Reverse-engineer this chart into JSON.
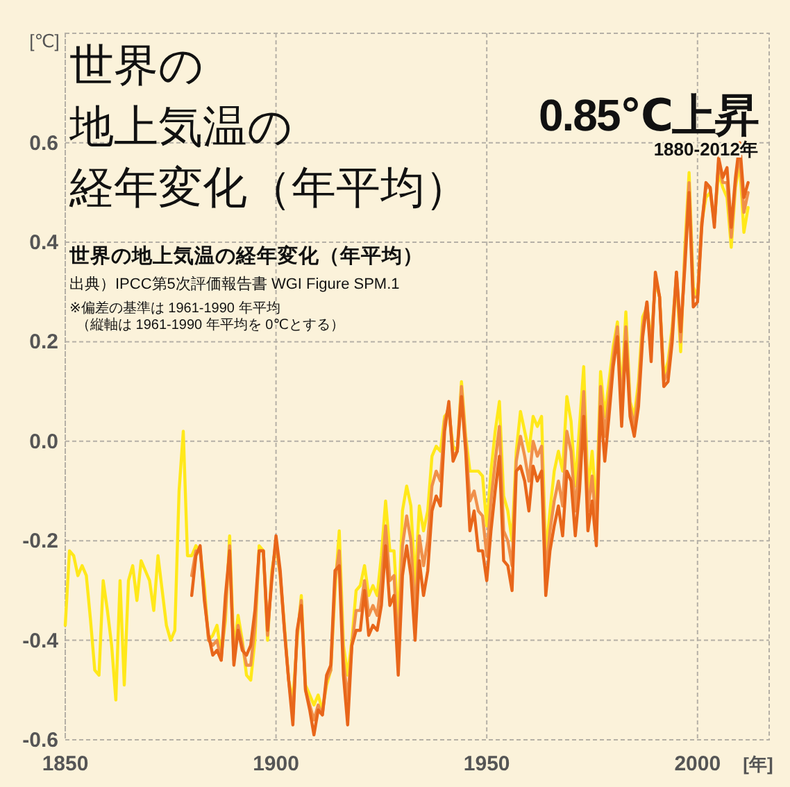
{
  "chart_data": {
    "type": "line",
    "title": [
      "世界の",
      "地上気温の",
      "経年変化（年平均）"
    ],
    "subtitle": "世界の地上気温の経年変化（年平均）",
    "annotations": [
      "0.85℃上昇",
      "1880-2012年",
      "出典）IPCC第5次評価報告書 WGI Figure SPM.1",
      "※偏差の基準は 1961-1990 年平均",
      "（縦軸は 1961-1990 年平均を 0℃とする）"
    ],
    "xlabel": "[年]",
    "ylabel": "[℃]",
    "xlim": [
      1850,
      2017
    ],
    "ylim": [
      -0.6,
      0.82
    ],
    "xticks": [
      1850,
      1900,
      1950,
      2000
    ],
    "yticks": [
      0.6,
      0.4,
      0.2,
      {
        "value": 0,
        "label": "0.0"
      },
      -0.2,
      -0.4,
      -0.6
    ],
    "grid": true,
    "line_style": "solid",
    "x": [
      1850,
      1851,
      1852,
      1853,
      1854,
      1855,
      1856,
      1857,
      1858,
      1859,
      1860,
      1861,
      1862,
      1863,
      1864,
      1865,
      1866,
      1867,
      1868,
      1869,
      1870,
      1871,
      1872,
      1873,
      1874,
      1875,
      1876,
      1877,
      1878,
      1879,
      1880,
      1881,
      1882,
      1883,
      1884,
      1885,
      1886,
      1887,
      1888,
      1889,
      1890,
      1891,
      1892,
      1893,
      1894,
      1895,
      1896,
      1897,
      1898,
      1899,
      1900,
      1901,
      1902,
      1903,
      1904,
      1905,
      1906,
      1907,
      1908,
      1909,
      1910,
      1911,
      1912,
      1913,
      1914,
      1915,
      1916,
      1917,
      1918,
      1919,
      1920,
      1921,
      1922,
      1923,
      1924,
      1925,
      1926,
      1927,
      1928,
      1929,
      1930,
      1931,
      1932,
      1933,
      1934,
      1935,
      1936,
      1937,
      1938,
      1939,
      1940,
      1941,
      1942,
      1943,
      1944,
      1945,
      1946,
      1947,
      1948,
      1949,
      1950,
      1951,
      1952,
      1953,
      1954,
      1955,
      1956,
      1957,
      1958,
      1959,
      1960,
      1961,
      1962,
      1963,
      1964,
      1965,
      1966,
      1967,
      1968,
      1969,
      1970,
      1971,
      1972,
      1973,
      1974,
      1975,
      1976,
      1977,
      1978,
      1979,
      1980,
      1981,
      1982,
      1983,
      1984,
      1985,
      1986,
      1987,
      1988,
      1989,
      1990,
      1991,
      1992,
      1993,
      1994,
      1995,
      1996,
      1997,
      1998,
      1999,
      2000,
      2001,
      2002,
      2003,
      2004,
      2005,
      2006,
      2007,
      2008,
      2009,
      2010,
      2011,
      2012
    ],
    "series": [
      {
        "color": "#ffe81a",
        "values": [
          -0.37,
          -0.22,
          -0.23,
          -0.27,
          -0.25,
          -0.27,
          -0.36,
          -0.46,
          -0.47,
          -0.28,
          -0.34,
          -0.41,
          -0.52,
          -0.28,
          -0.49,
          -0.28,
          -0.25,
          -0.32,
          -0.24,
          -0.26,
          -0.28,
          -0.34,
          -0.23,
          -0.3,
          -0.37,
          -0.4,
          -0.38,
          -0.1,
          0.02,
          -0.23,
          -0.23,
          -0.21,
          -0.22,
          -0.29,
          -0.4,
          -0.39,
          -0.37,
          -0.43,
          -0.36,
          -0.19,
          -0.42,
          -0.35,
          -0.4,
          -0.47,
          -0.48,
          -0.4,
          -0.21,
          -0.22,
          -0.4,
          -0.26,
          -0.21,
          -0.27,
          -0.37,
          -0.48,
          -0.52,
          -0.4,
          -0.31,
          -0.49,
          -0.51,
          -0.53,
          -0.51,
          -0.54,
          -0.49,
          -0.46,
          -0.3,
          -0.18,
          -0.41,
          -0.47,
          -0.4,
          -0.3,
          -0.29,
          -0.25,
          -0.31,
          -0.29,
          -0.31,
          -0.23,
          -0.12,
          -0.22,
          -0.22,
          -0.37,
          -0.14,
          -0.09,
          -0.13,
          -0.29,
          -0.13,
          -0.18,
          -0.14,
          -0.03,
          -0.01,
          -0.02,
          0.05,
          0.06,
          -0.01,
          -0.02,
          0.12,
          0.01,
          -0.06,
          -0.06,
          -0.06,
          -0.07,
          -0.17,
          -0.06,
          0.02,
          0.08,
          -0.11,
          -0.14,
          -0.2,
          -0.02,
          0.06,
          0.02,
          -0.02,
          0.05,
          0.03,
          0.05,
          -0.23,
          -0.14,
          -0.06,
          -0.02,
          -0.06,
          0.09,
          0.04,
          -0.09,
          0.03,
          0.15,
          -0.1,
          -0.02,
          -0.14,
          0.14,
          0.05,
          0.12,
          0.19,
          0.24,
          0.09,
          0.26,
          0.08,
          0.05,
          0.12,
          0.25,
          0.27,
          0.2,
          0.32,
          0.29,
          0.13,
          0.16,
          0.23,
          0.33,
          0.18,
          0.39,
          0.54,
          0.31,
          0.29,
          0.44,
          0.49,
          0.5,
          0.44,
          0.54,
          0.51,
          0.49,
          0.39,
          0.51,
          0.56,
          0.42,
          0.47
        ]
      },
      {
        "color": "#f0904a",
        "values": [
          null,
          null,
          null,
          null,
          null,
          null,
          null,
          null,
          null,
          null,
          null,
          null,
          null,
          null,
          null,
          null,
          null,
          null,
          null,
          null,
          null,
          null,
          null,
          null,
          null,
          null,
          null,
          null,
          null,
          null,
          -0.27,
          -0.22,
          -0.22,
          -0.31,
          -0.4,
          -0.41,
          -0.4,
          -0.44,
          -0.34,
          -0.21,
          -0.44,
          -0.37,
          -0.41,
          -0.45,
          -0.45,
          -0.37,
          -0.22,
          -0.22,
          -0.39,
          -0.27,
          -0.2,
          -0.27,
          -0.38,
          -0.48,
          -0.55,
          -0.39,
          -0.32,
          -0.5,
          -0.53,
          -0.56,
          -0.53,
          -0.55,
          -0.48,
          -0.46,
          -0.28,
          -0.22,
          -0.44,
          -0.52,
          -0.41,
          -0.34,
          -0.34,
          -0.28,
          -0.35,
          -0.33,
          -0.35,
          -0.28,
          -0.17,
          -0.28,
          -0.27,
          -0.42,
          -0.21,
          -0.15,
          -0.2,
          -0.35,
          -0.19,
          -0.25,
          -0.2,
          -0.09,
          -0.06,
          -0.08,
          0.04,
          0.07,
          -0.03,
          -0.02,
          0.11,
          0.0,
          -0.12,
          -0.1,
          -0.14,
          -0.15,
          -0.23,
          -0.12,
          -0.04,
          0.03,
          -0.18,
          -0.2,
          -0.25,
          -0.04,
          0.01,
          -0.03,
          -0.08,
          0.0,
          -0.03,
          -0.01,
          -0.27,
          -0.18,
          -0.12,
          -0.08,
          -0.13,
          0.02,
          -0.02,
          -0.14,
          -0.04,
          0.1,
          -0.14,
          -0.07,
          -0.18,
          0.11,
          0.01,
          0.09,
          0.17,
          0.23,
          0.06,
          0.23,
          0.07,
          0.03,
          0.1,
          0.23,
          0.28,
          0.18,
          0.33,
          0.29,
          0.12,
          0.14,
          0.22,
          0.34,
          0.2,
          0.37,
          0.52,
          0.29,
          0.29,
          0.44,
          0.51,
          0.51,
          0.44,
          0.56,
          0.52,
          0.52,
          0.41,
          0.52,
          0.58,
          0.46,
          0.5
        ]
      },
      {
        "color": "#e8661a",
        "values": [
          null,
          null,
          null,
          null,
          null,
          null,
          null,
          null,
          null,
          null,
          null,
          null,
          null,
          null,
          null,
          null,
          null,
          null,
          null,
          null,
          null,
          null,
          null,
          null,
          null,
          null,
          null,
          null,
          null,
          null,
          -0.31,
          -0.23,
          -0.21,
          -0.32,
          -0.39,
          -0.43,
          -0.42,
          -0.44,
          -0.31,
          -0.22,
          -0.45,
          -0.38,
          -0.42,
          -0.43,
          -0.41,
          -0.34,
          -0.22,
          -0.22,
          -0.38,
          -0.28,
          -0.19,
          -0.26,
          -0.38,
          -0.48,
          -0.57,
          -0.38,
          -0.33,
          -0.5,
          -0.54,
          -0.59,
          -0.54,
          -0.55,
          -0.47,
          -0.45,
          -0.26,
          -0.25,
          -0.47,
          -0.57,
          -0.41,
          -0.38,
          -0.38,
          -0.3,
          -0.39,
          -0.37,
          -0.38,
          -0.33,
          -0.21,
          -0.33,
          -0.31,
          -0.47,
          -0.27,
          -0.21,
          -0.27,
          -0.4,
          -0.24,
          -0.31,
          -0.26,
          -0.14,
          -0.11,
          -0.13,
          0.02,
          0.08,
          -0.04,
          -0.02,
          0.09,
          -0.02,
          -0.18,
          -0.14,
          -0.22,
          -0.22,
          -0.28,
          -0.18,
          -0.1,
          -0.03,
          -0.24,
          -0.25,
          -0.3,
          -0.06,
          -0.05,
          -0.08,
          -0.14,
          -0.05,
          -0.08,
          -0.06,
          -0.31,
          -0.22,
          -0.17,
          -0.13,
          -0.19,
          -0.06,
          -0.08,
          -0.19,
          -0.1,
          0.05,
          -0.18,
          -0.12,
          -0.21,
          0.07,
          -0.04,
          0.05,
          0.15,
          0.21,
          0.03,
          0.2,
          0.05,
          0.01,
          0.07,
          0.21,
          0.28,
          0.16,
          0.34,
          0.29,
          0.11,
          0.12,
          0.2,
          0.34,
          0.22,
          0.35,
          0.5,
          0.27,
          0.28,
          0.43,
          0.52,
          0.51,
          0.43,
          0.57,
          0.53,
          0.55,
          0.43,
          0.53,
          0.6,
          0.49,
          0.52
        ]
      }
    ]
  }
}
